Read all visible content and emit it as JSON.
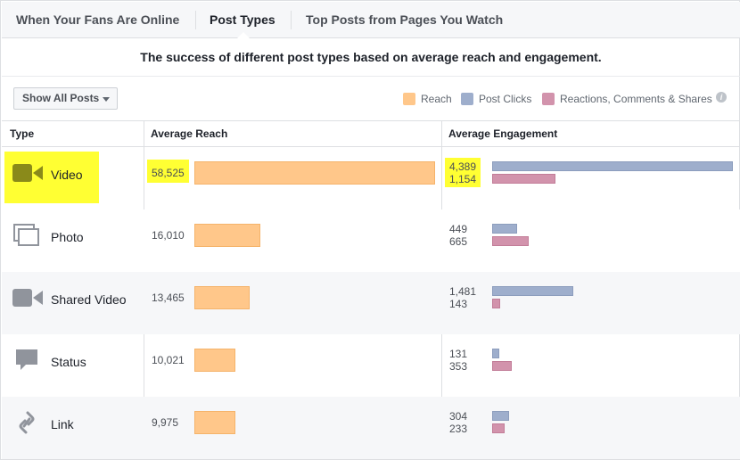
{
  "tabs": [
    {
      "label": "When Your Fans Are Online"
    },
    {
      "label": "Post Types"
    },
    {
      "label": "Top Posts from Pages You Watch"
    }
  ],
  "subtitle": "The success of different post types based on average reach and engagement.",
  "filter": {
    "label": "Show All Posts"
  },
  "legend": [
    {
      "label": "Reach",
      "color": "#ffc78a"
    },
    {
      "label": "Post Clicks",
      "color": "#9eaecc"
    },
    {
      "label": "Reactions, Comments & Shares",
      "color": "#d293ac"
    }
  ],
  "info_icon_text": "i",
  "columns": {
    "type": "Type",
    "reach": "Average Reach",
    "engagement": "Average Engagement"
  },
  "rows": [
    {
      "type": "Video",
      "icon": "video-camera-icon",
      "reach_label": "58,525",
      "clicks_label": "4,389",
      "reactions_label": "1,154",
      "reach": 58525,
      "clicks": 4389,
      "reactions": 1154,
      "highlighted": true
    },
    {
      "type": "Photo",
      "icon": "photo-stack-icon",
      "reach_label": "16,010",
      "clicks_label": "449",
      "reactions_label": "665",
      "reach": 16010,
      "clicks": 449,
      "reactions": 665
    },
    {
      "type": "Shared Video",
      "icon": "video-camera-icon",
      "reach_label": "13,465",
      "clicks_label": "1,481",
      "reactions_label": "143",
      "reach": 13465,
      "clicks": 1481,
      "reactions": 143
    },
    {
      "type": "Status",
      "icon": "speech-bubble-icon",
      "reach_label": "10,021",
      "clicks_label": "131",
      "reactions_label": "353",
      "reach": 10021,
      "clicks": 131,
      "reactions": 353
    },
    {
      "type": "Link",
      "icon": "chain-link-icon",
      "reach_label": "9,975",
      "clicks_label": "304",
      "reactions_label": "233",
      "reach": 9975,
      "clicks": 304,
      "reactions": 233
    }
  ]
}
